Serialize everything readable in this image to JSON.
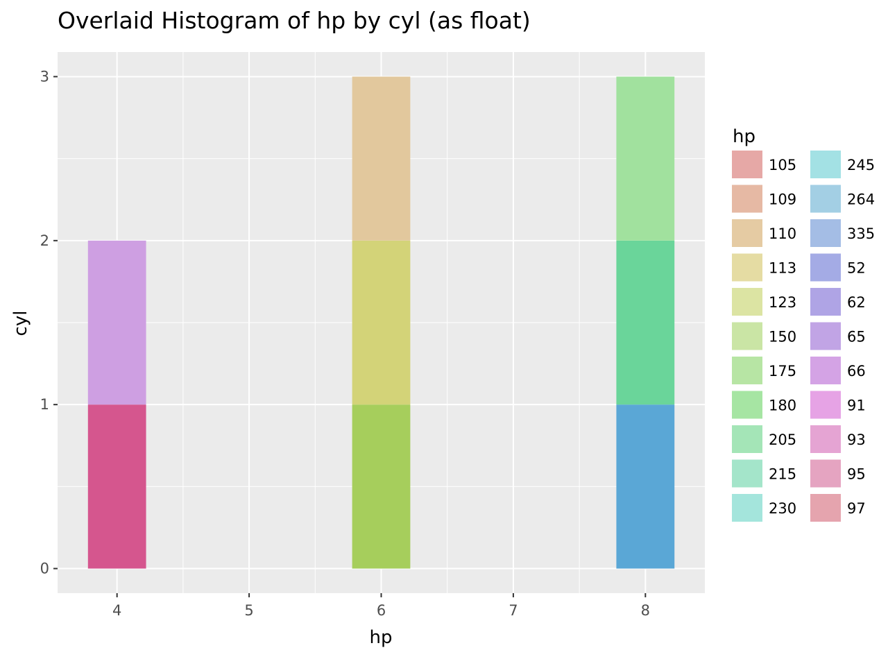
{
  "chart_data": {
    "type": "bar",
    "title": "Overlaid Histogram of hp by cyl (as float)",
    "xlabel": "hp",
    "ylabel": "cyl",
    "xlim": [
      3.55,
      8.45
    ],
    "ylim": [
      -0.15,
      3.15
    ],
    "x_ticks": [
      4,
      5,
      6,
      7,
      8
    ],
    "y_ticks": [
      0,
      1,
      2,
      3
    ],
    "grid": true,
    "bar_width": 0.44,
    "bars": [
      {
        "x": 4,
        "y0": 0,
        "y1": 1,
        "color": "#d5568e"
      },
      {
        "x": 4,
        "y0": 1,
        "y1": 2,
        "color": "#ce9fe2"
      },
      {
        "x": 6,
        "y0": 0,
        "y1": 1,
        "color": "#a6ce5c"
      },
      {
        "x": 6,
        "y0": 1,
        "y1": 2,
        "color": "#d3d378"
      },
      {
        "x": 6,
        "y0": 2,
        "y1": 3,
        "color": "#e2c89d"
      },
      {
        "x": 8,
        "y0": 0,
        "y1": 1,
        "color": "#5aa7d6"
      },
      {
        "x": 8,
        "y0": 1,
        "y1": 2,
        "color": "#6ad59a"
      },
      {
        "x": 8,
        "y0": 2,
        "y1": 3,
        "color": "#a1e19e"
      }
    ],
    "legend": {
      "title": "hp",
      "placement": "right",
      "entries": [
        {
          "label": "105",
          "color": "#e6a8a6"
        },
        {
          "label": "109",
          "color": "#e6b9a4"
        },
        {
          "label": "110",
          "color": "#e5cba3"
        },
        {
          "label": "113",
          "color": "#e5dca3"
        },
        {
          "label": "123",
          "color": "#dce4a3"
        },
        {
          "label": "150",
          "color": "#cae5a5"
        },
        {
          "label": "175",
          "color": "#b7e5a4"
        },
        {
          "label": "180",
          "color": "#a6e5a3"
        },
        {
          "label": "205",
          "color": "#a4e5b7"
        },
        {
          "label": "215",
          "color": "#a4e5ca"
        },
        {
          "label": "230",
          "color": "#a4e5dc"
        },
        {
          "label": "245",
          "color": "#a3e1e4"
        },
        {
          "label": "264",
          "color": "#a3cfe4"
        },
        {
          "label": "335",
          "color": "#a4bde5"
        },
        {
          "label": "52",
          "color": "#a4abe5"
        },
        {
          "label": "62",
          "color": "#afa4e5"
        },
        {
          "label": "65",
          "color": "#c1a4e5"
        },
        {
          "label": "66",
          "color": "#d4a3e5"
        },
        {
          "label": "91",
          "color": "#e6a3e5"
        },
        {
          "label": "93",
          "color": "#e5a4d3"
        },
        {
          "label": "95",
          "color": "#e5a4c1"
        },
        {
          "label": "97",
          "color": "#e5a4ae"
        }
      ]
    }
  }
}
